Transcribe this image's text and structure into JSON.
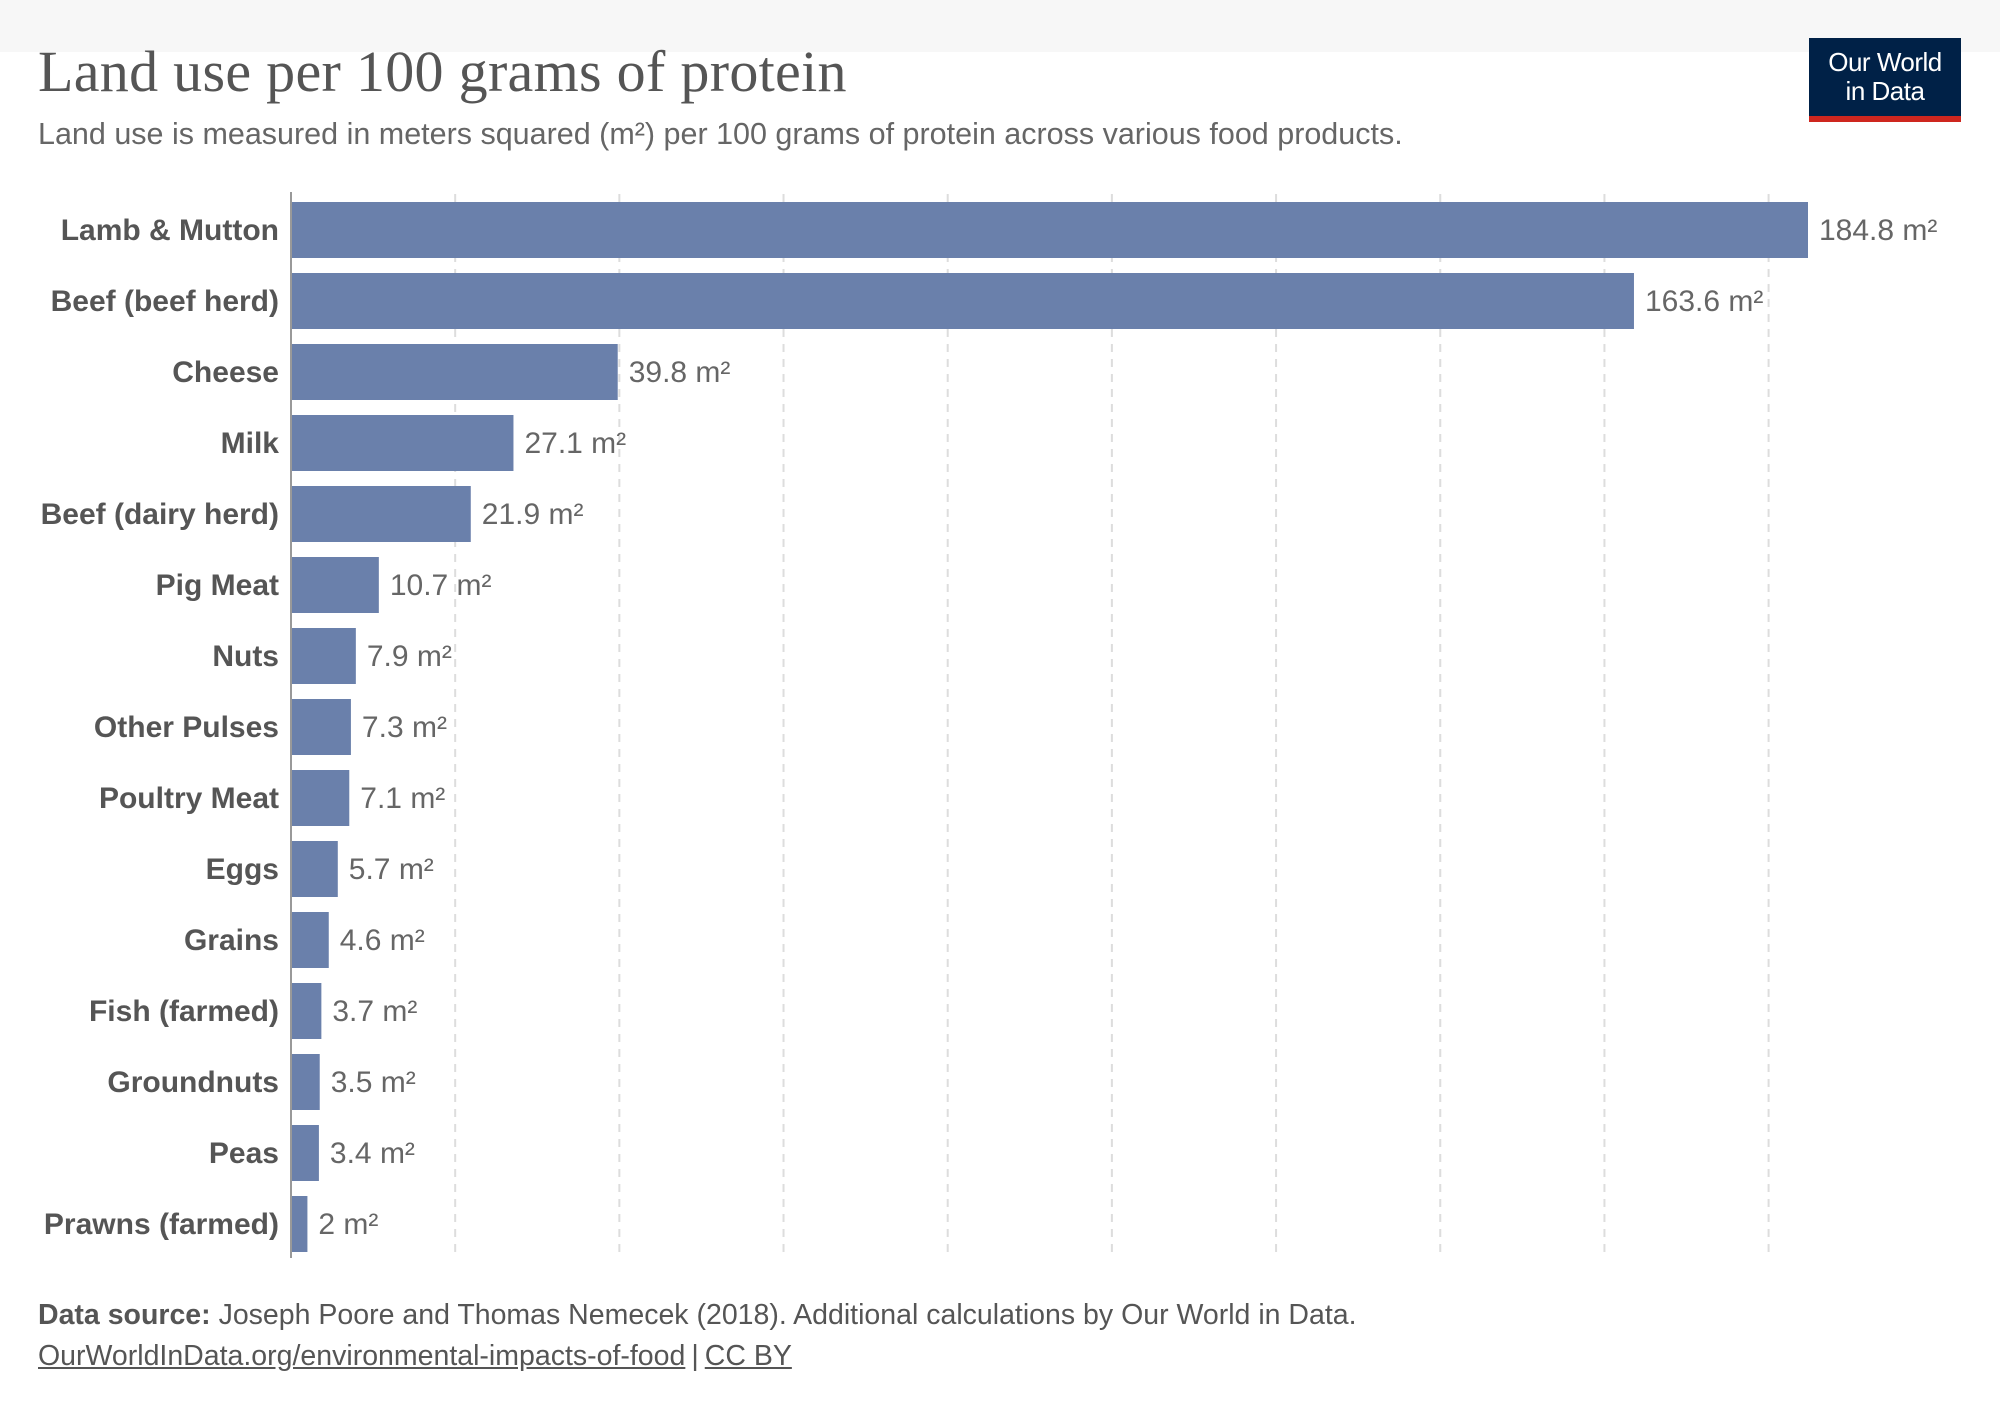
{
  "header": {
    "title": "Land use per 100 grams of protein",
    "subtitle": "Land use is measured in meters squared (m²) per 100 grams of protein across various food products.",
    "logo_line1": "Our World",
    "logo_line2": "in Data"
  },
  "colors": {
    "bar": "#6a80ab",
    "grid": "#dddddd",
    "axis": "#999999",
    "logo_bg": "#002147",
    "logo_accent": "#ce261e"
  },
  "chart_data": {
    "type": "bar",
    "orientation": "horizontal",
    "unit": "m²",
    "categories": [
      "Lamb & Mutton",
      "Beef (beef herd)",
      "Cheese",
      "Milk",
      "Beef (dairy herd)",
      "Pig Meat",
      "Nuts",
      "Other Pulses",
      "Poultry Meat",
      "Eggs",
      "Grains",
      "Fish (farmed)",
      "Groundnuts",
      "Peas",
      "Prawns (farmed)"
    ],
    "values": [
      184.8,
      163.6,
      39.8,
      27.1,
      21.9,
      10.7,
      7.9,
      7.3,
      7.1,
      5.7,
      4.6,
      3.7,
      3.5,
      3.4,
      2
    ],
    "value_labels": [
      "184.8 m²",
      "163.6 m²",
      "39.8 m²",
      "27.1 m²",
      "21.9 m²",
      "10.7 m²",
      "7.9 m²",
      "7.3 m²",
      "7.1 m²",
      "5.7 m²",
      "4.6 m²",
      "3.7 m²",
      "3.5 m²",
      "3.4 m²",
      "2 m²"
    ],
    "xlim": [
      0,
      184.8
    ],
    "grid_step": 20,
    "grid": "vertical dashed",
    "legend": "none"
  },
  "footer": {
    "source_label": "Data source:",
    "source_text": " Joseph Poore and Thomas Nemecek (2018). Additional calculations by Our World in Data.",
    "link_text": "OurWorldInData.org/environmental-impacts-of-food",
    "separator": "|",
    "license_text": "CC BY"
  }
}
